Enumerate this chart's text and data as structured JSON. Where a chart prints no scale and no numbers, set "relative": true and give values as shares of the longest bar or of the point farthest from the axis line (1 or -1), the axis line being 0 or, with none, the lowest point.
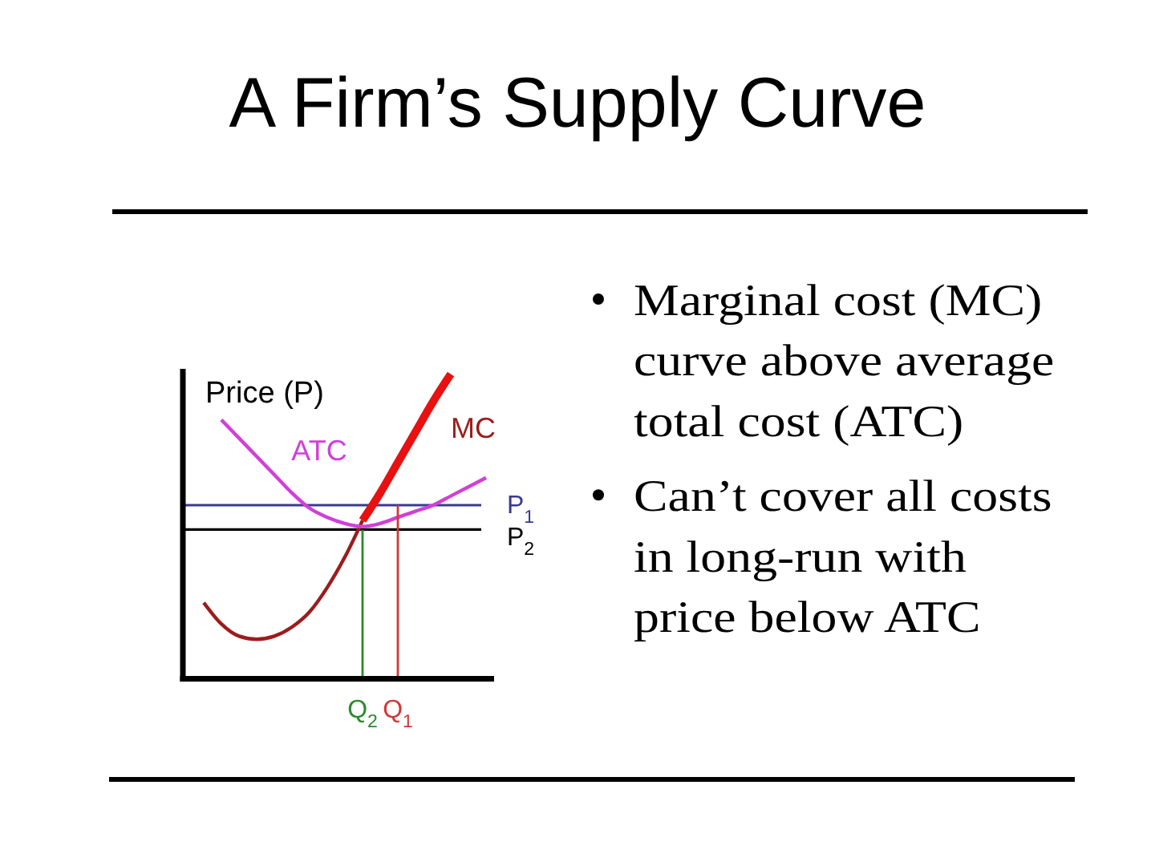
{
  "chart_data": {
    "type": "line",
    "title": "A Firm’s Supply Curve",
    "ylabel": "Price (P)",
    "relative": true,
    "categories": [
      null,
      null,
      null,
      null,
      null,
      null,
      null,
      null,
      null,
      "Q$_{2}$",
      null,
      "Q$_{1}$",
      null,
      null,
      null,
      null,
      null
    ],
    "series": [
      {
        "name": "MC",
        "color": "#9c1c1c",
        "values": [
          0.25,
          0.18,
          0.14,
          0.13,
          0.14,
          0.17,
          0.22,
          0.3,
          0.4,
          0.52,
          null,
          null,
          null,
          null,
          null,
          null,
          null
        ]
      },
      {
        "color": "#e81010",
        "values": [
          null,
          null,
          null,
          null,
          null,
          null,
          null,
          null,
          null,
          0.52,
          0.61,
          0.71,
          0.81,
          0.91,
          1,
          null,
          null
        ]
      },
      {
        "name": "ATC",
        "color": "#d040d8",
        "values": [
          null,
          0.85,
          0.79,
          0.73,
          0.67,
          0.61,
          0.56,
          0.53,
          0.51,
          0.5,
          0.51,
          0.53,
          0.55,
          0.57,
          0.6,
          0.63,
          0.66
        ]
      },
      {
        "type": "bar",
        "color": "#2a8a2a",
        "values": [
          null,
          null,
          null,
          null,
          null,
          null,
          null,
          null,
          null,
          0.49,
          null,
          null,
          null,
          null,
          null,
          null,
          null
        ]
      },
      {
        "type": "bar",
        "color": "#d03838",
        "values": [
          null,
          null,
          null,
          null,
          null,
          null,
          null,
          null,
          null,
          null,
          null,
          0.57,
          null,
          null,
          null,
          null,
          null
        ]
      }
    ],
    "ref_lines": [
      {
        "axis": "y",
        "value": 0.57,
        "label": "P$_{1}$",
        "color": "#3a3a90"
      },
      {
        "axis": "y",
        "value": 0.49,
        "label": "P$_{2}$",
        "color": "#000000"
      }
    ],
    "annotations": [
      "Marginal cost (MC) curve above average total cost (ATC)",
      "Can’t cover all costs in long-run with price below ATC"
    ]
  }
}
